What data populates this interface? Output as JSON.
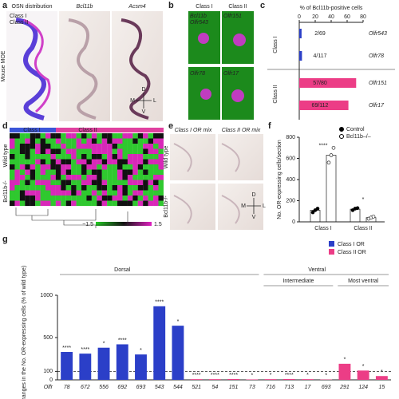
{
  "panels": {
    "a": {
      "letter": "a",
      "titles": [
        "OSN distribution",
        "Bcl11b",
        "Acsm4"
      ],
      "legend": [
        "Class I",
        "Class II"
      ],
      "side": "Mouse MOE",
      "axes": [
        "D",
        "V",
        "M",
        "L"
      ]
    },
    "b": {
      "letter": "b",
      "columns": [
        "Class I",
        "Class II"
      ],
      "marker": "Bcl11b",
      "genes": [
        "Olfr543",
        "Olfr151",
        "Olfr78",
        "Olfr17"
      ]
    },
    "d": {
      "letter": "d",
      "columns": [
        "Class I",
        "Class II"
      ],
      "rows": [
        "Wild type",
        "Bcl11b-/-"
      ],
      "scale": [
        "−1.5",
        "1.5"
      ]
    },
    "e": {
      "letter": "e",
      "columns": [
        "Class I OR mix",
        "Class II OR mix"
      ],
      "rows": [
        "Wild type",
        "Bcl11b-/-"
      ],
      "axes": [
        "D",
        "V",
        "M",
        "L"
      ]
    },
    "c": {
      "letter": "c"
    },
    "f": {
      "letter": "f"
    },
    "g": {
      "letter": "g"
    }
  },
  "chart_data": [
    {
      "type": "hbar",
      "title": "% of Bcl11b-positive cells",
      "categories": [
        "Olfr543",
        "Olfr78",
        "Olfr151",
        "Olfr17"
      ],
      "groups": [
        "Class I",
        "Class II"
      ],
      "values": [
        2.9,
        3.4,
        71.3,
        61.6
      ],
      "value_labels": [
        "2/69",
        "4/117",
        "57/80",
        "69/112"
      ],
      "colors": [
        "#2b3fc8",
        "#2b3fc8",
        "#ec3d86",
        "#ec3d86"
      ],
      "xlim": [
        0,
        80
      ],
      "xticks": [
        0,
        20,
        40,
        60,
        80
      ]
    },
    {
      "type": "dotbar",
      "ylabel": "No. OR-expressing cells/section",
      "categories": [
        "Class I",
        "Class II"
      ],
      "series": [
        {
          "name": "Control",
          "color": "#000000",
          "values": [
            110,
            120
          ],
          "points": [
            [
              90,
              110,
              125
            ],
            [
              110,
              125,
              130
            ]
          ]
        },
        {
          "name": "Bcl11b–/–",
          "color": "#ffffff",
          "values": [
            630,
            40
          ],
          "points": [
            [
              560,
              630,
              700
            ],
            [
              30,
              40,
              50
            ]
          ]
        }
      ],
      "annotations": [
        "****",
        "*"
      ],
      "ylim": [
        0,
        800
      ],
      "yticks": [
        0,
        200,
        400,
        600,
        800
      ],
      "legend": "top-right"
    },
    {
      "type": "bar",
      "ylabel": "Changes in the No. OR-expressing cells (% of wild type)",
      "xprefix": "Olfr",
      "categories": [
        "78",
        "672",
        "556",
        "692",
        "693",
        "543",
        "544",
        "521",
        "54",
        "151",
        "73",
        "716",
        "713",
        "17",
        "693",
        "291",
        "124",
        "15"
      ],
      "series": [
        {
          "name": "Class I OR",
          "color": "#2b3fc8",
          "values": [
            330,
            310,
            380,
            420,
            300,
            870,
            640,
            null,
            null,
            null,
            null,
            null,
            null,
            null,
            null,
            null,
            null,
            null
          ]
        },
        {
          "name": "Class II OR",
          "color": "#ec3d86",
          "values": [
            null,
            null,
            null,
            null,
            null,
            null,
            null,
            8,
            8,
            10,
            5,
            8,
            10,
            8,
            4,
            190,
            110,
            45
          ]
        }
      ],
      "annotations": [
        "****",
        "****",
        "*",
        "****",
        "*",
        "****",
        "*",
        "****",
        "****",
        "****",
        "*",
        "*",
        "****",
        "*",
        "*",
        "*",
        "*",
        "*"
      ],
      "groups": [
        "Dorsal",
        "Ventral",
        "Intermediate",
        "Most ventral"
      ],
      "ylim": [
        0,
        1000
      ],
      "yticks": [
        0,
        100,
        500,
        1000
      ],
      "ref_line": 100,
      "legend": "top-right"
    }
  ]
}
